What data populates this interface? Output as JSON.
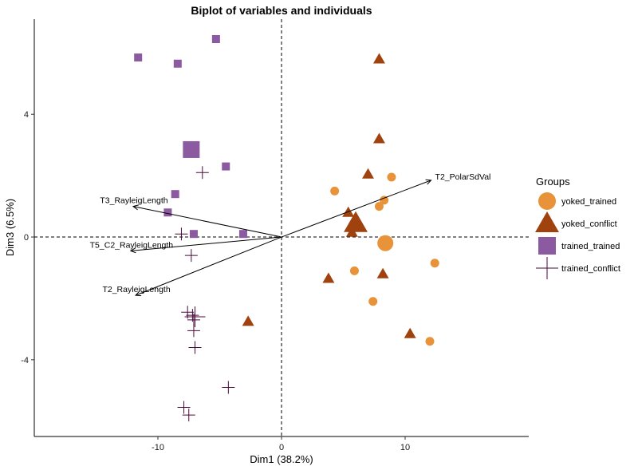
{
  "chart_data": {
    "type": "scatter",
    "title": "Biplot of variables and individuals",
    "xlabel": "Dim1 (38.2%)",
    "ylabel": "Dim3 (6.5%)",
    "xlim": [
      -20,
      20
    ],
    "ylim": [
      -6.5,
      7.1
    ],
    "xticks": [
      -10,
      0,
      10
    ],
    "yticks": [
      -4,
      0,
      4
    ],
    "xtick_labels": [
      "-10",
      "0",
      "10"
    ],
    "ytick_labels": [
      "-4",
      "0",
      "4"
    ],
    "grid": false,
    "reference_lines": {
      "x": 0,
      "y": 0,
      "style": "dashed"
    },
    "legend": {
      "title": "Groups",
      "placement": "right",
      "entries": [
        "yoked_trained",
        "yoked_conflict",
        "trained_trained",
        "trained_conflict"
      ]
    },
    "colors": {
      "yoked_trained": "#E8933A",
      "yoked_conflict": "#A0420E",
      "trained_trained": "#8B5AA0",
      "trained_conflict": "#4A0A3A",
      "arrows": "#000000"
    },
    "series": [
      {
        "name": "yoked_trained",
        "marker": "circle",
        "points": [
          [
            4.3,
            1.5
          ],
          [
            8.9,
            1.95
          ],
          [
            8.3,
            1.2
          ],
          [
            7.9,
            1.0
          ],
          [
            12.4,
            -0.85
          ],
          [
            5.9,
            -1.1
          ],
          [
            7.4,
            -2.1
          ],
          [
            12.0,
            -3.4
          ]
        ],
        "centroid": [
          8.4,
          -0.2
        ]
      },
      {
        "name": "yoked_conflict",
        "marker": "triangle",
        "points": [
          [
            7.9,
            5.8
          ],
          [
            7.9,
            3.2
          ],
          [
            7.0,
            2.05
          ],
          [
            5.4,
            0.8
          ],
          [
            5.7,
            0.15
          ],
          [
            3.8,
            -1.35
          ],
          [
            8.2,
            -1.2
          ],
          [
            -2.7,
            -2.75
          ],
          [
            10.4,
            -3.15
          ]
        ],
        "centroid": [
          6.0,
          0.45
        ]
      },
      {
        "name": "trained_trained",
        "marker": "square",
        "points": [
          [
            -5.3,
            6.45
          ],
          [
            -11.6,
            5.85
          ],
          [
            -8.4,
            5.65
          ],
          [
            -4.5,
            2.3
          ],
          [
            -8.6,
            1.4
          ],
          [
            -9.2,
            0.8
          ],
          [
            -7.1,
            0.1
          ],
          [
            -3.1,
            0.1
          ]
        ],
        "centroid": [
          -7.3,
          2.85
        ]
      },
      {
        "name": "trained_conflict",
        "marker": "cross",
        "points": [
          [
            -6.4,
            2.1
          ],
          [
            -8.1,
            0.1
          ],
          [
            -7.3,
            -0.6
          ],
          [
            -7.6,
            -2.45
          ],
          [
            -7.2,
            -2.55
          ],
          [
            -7.1,
            -2.7
          ],
          [
            -7.1,
            -3.05
          ],
          [
            -7.0,
            -3.6
          ],
          [
            -4.3,
            -4.9
          ],
          [
            -7.9,
            -5.55
          ],
          [
            -7.5,
            -5.8
          ]
        ],
        "centroid": [
          -7.0,
          -2.6
        ]
      }
    ],
    "variables": [
      {
        "name": "T2_PolarSdVal",
        "x": 12.1,
        "y": 1.85
      },
      {
        "name": "T3_RayleigLength",
        "x": -12.0,
        "y": 1.0
      },
      {
        "name": "T5_C2_RayleigLength",
        "x": -12.2,
        "y": -0.45
      },
      {
        "name": "T2_RayleigLength",
        "x": -11.8,
        "y": -1.9
      }
    ]
  }
}
